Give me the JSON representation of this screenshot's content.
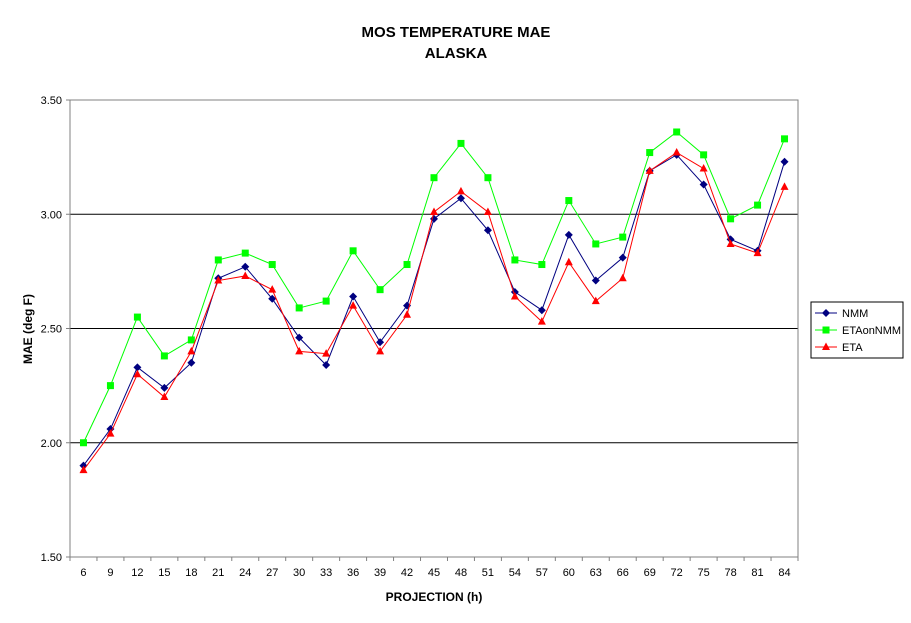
{
  "chart_data": {
    "type": "line",
    "title": "MOS TEMPERATURE MAE",
    "subtitle": "ALASKA",
    "xlabel": "PROJECTION (h)",
    "ylabel": "MAE (deg F)",
    "categories": [
      "6",
      "9",
      "12",
      "15",
      "18",
      "21",
      "24",
      "27",
      "30",
      "33",
      "36",
      "39",
      "42",
      "45",
      "48",
      "51",
      "54",
      "57",
      "60",
      "63",
      "66",
      "69",
      "72",
      "75",
      "78",
      "81",
      "84"
    ],
    "ylim": [
      1.5,
      3.5
    ],
    "yticks": [
      "1.50",
      "2.00",
      "2.50",
      "3.00",
      "3.50"
    ],
    "grid": "horizontal",
    "legend_position": "right",
    "series": [
      {
        "name": "NMM",
        "color": "#000080",
        "marker": "diamond",
        "values": [
          1.9,
          2.06,
          2.33,
          2.24,
          2.35,
          2.72,
          2.77,
          2.63,
          2.46,
          2.34,
          2.64,
          2.44,
          2.6,
          2.98,
          3.07,
          2.93,
          2.66,
          2.58,
          2.91,
          2.71,
          2.81,
          3.19,
          3.26,
          3.13,
          2.89,
          2.84,
          3.23
        ]
      },
      {
        "name": "ETAonNMM",
        "color": "#00ff00",
        "marker": "square",
        "values": [
          2.0,
          2.25,
          2.55,
          2.38,
          2.45,
          2.8,
          2.83,
          2.78,
          2.59,
          2.62,
          2.84,
          2.67,
          2.78,
          3.16,
          3.31,
          3.16,
          2.8,
          2.78,
          3.06,
          2.87,
          2.9,
          3.27,
          3.36,
          3.26,
          2.98,
          3.04,
          3.33
        ]
      },
      {
        "name": "ETA",
        "color": "#ff0000",
        "marker": "triangle",
        "values": [
          1.88,
          2.04,
          2.3,
          2.2,
          2.4,
          2.71,
          2.73,
          2.67,
          2.4,
          2.39,
          2.6,
          2.4,
          2.56,
          3.01,
          3.1,
          3.01,
          2.64,
          2.53,
          2.79,
          2.62,
          2.72,
          3.19,
          3.27,
          3.2,
          2.87,
          2.83,
          3.12
        ]
      }
    ]
  }
}
